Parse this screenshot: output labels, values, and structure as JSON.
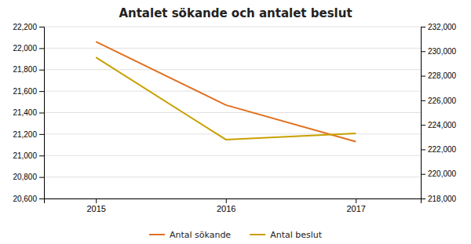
{
  "chart_data": {
    "type": "line",
    "title": "Antalet sökande och antalet beslut",
    "x": [
      2015,
      2016,
      2017
    ],
    "xlim": [
      2014.6,
      2017.5
    ],
    "xticks": [
      2015,
      2016,
      2017
    ],
    "ylim": [
      20600,
      22200
    ],
    "yticks": [
      {
        "value": 20600,
        "label": "20,600"
      },
      {
        "value": 20800,
        "label": "20,800"
      },
      {
        "value": 21000,
        "label": "21,000"
      },
      {
        "value": 21200,
        "label": "21,200"
      },
      {
        "value": 21400,
        "label": "21,400"
      },
      {
        "value": 21600,
        "label": "21,600"
      },
      {
        "value": 21800,
        "label": "21,800"
      },
      {
        "value": 22000,
        "label": "22,000"
      },
      {
        "value": 22200,
        "label": "22,200"
      }
    ],
    "y2lim": [
      218000,
      232000
    ],
    "y2ticks": [
      {
        "value": 218000,
        "label": "218,000"
      },
      {
        "value": 220000,
        "label": "220,000"
      },
      {
        "value": 222000,
        "label": "222,000"
      },
      {
        "value": 224000,
        "label": "224,000"
      },
      {
        "value": 226000,
        "label": "226,000"
      },
      {
        "value": 228000,
        "label": "228,000"
      },
      {
        "value": 230000,
        "label": "230,000"
      },
      {
        "value": 232000,
        "label": "232,000"
      }
    ],
    "series": [
      {
        "name": "Antal sökande",
        "color": "#E07020",
        "values": [
          22060,
          21470,
          21130
        ]
      },
      {
        "name": "Antal beslut",
        "color": "#C8A000",
        "values": [
          229500,
          222800,
          223300
        ],
        "axis": "y2"
      }
    ],
    "grid": true,
    "legend": "bottom"
  }
}
